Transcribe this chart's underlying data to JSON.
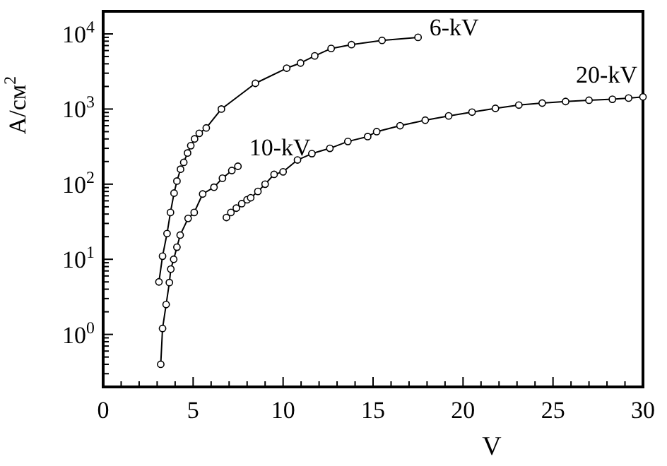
{
  "chart_data": {
    "type": "line",
    "xlabel": "V",
    "ylabel": "A/см$^{2}$",
    "log": "y",
    "marker": "circle",
    "grid": false,
    "xlim": [
      0,
      30
    ],
    "ylim": [
      0.2,
      20000
    ],
    "xticks": [
      0,
      {
        "value": 1,
        "label": null
      },
      {
        "value": 2,
        "label": null
      },
      {
        "value": 3,
        "label": null
      },
      {
        "value": 4,
        "label": null
      },
      5,
      {
        "value": 6,
        "label": null
      },
      {
        "value": 7,
        "label": null
      },
      {
        "value": 8,
        "label": null
      },
      {
        "value": 9,
        "label": null
      },
      10,
      {
        "value": 11,
        "label": null
      },
      {
        "value": 12,
        "label": null
      },
      {
        "value": 13,
        "label": null
      },
      {
        "value": 14,
        "label": null
      },
      15,
      {
        "value": 16,
        "label": null
      },
      {
        "value": 17,
        "label": null
      },
      {
        "value": 18,
        "label": null
      },
      {
        "value": 19,
        "label": null
      },
      20,
      {
        "value": 21,
        "label": null
      },
      {
        "value": 22,
        "label": null
      },
      {
        "value": 23,
        "label": null
      },
      {
        "value": 24,
        "label": null
      },
      25,
      {
        "value": 26,
        "label": null
      },
      {
        "value": 27,
        "label": null
      },
      {
        "value": 28,
        "label": null
      },
      {
        "value": 29,
        "label": null
      },
      30
    ],
    "yticks": [
      {
        "value": 0.2,
        "label": null
      },
      {
        "value": 0.3,
        "label": null
      },
      {
        "value": 0.4,
        "label": null
      },
      {
        "value": 0.5,
        "label": null
      },
      {
        "value": 0.6,
        "label": null
      },
      {
        "value": 0.7,
        "label": null
      },
      {
        "value": 0.8,
        "label": null
      },
      {
        "value": 0.9,
        "label": null
      },
      {
        "value": 1,
        "label": "10$^{0}$"
      },
      {
        "value": 2,
        "label": null
      },
      {
        "value": 3,
        "label": null
      },
      {
        "value": 4,
        "label": null
      },
      {
        "value": 5,
        "label": null
      },
      {
        "value": 6,
        "label": null
      },
      {
        "value": 7,
        "label": null
      },
      {
        "value": 8,
        "label": null
      },
      {
        "value": 9,
        "label": null
      },
      {
        "value": 10,
        "label": "10$^{1}$"
      },
      {
        "value": 20,
        "label": null
      },
      {
        "value": 30,
        "label": null
      },
      {
        "value": 40,
        "label": null
      },
      {
        "value": 50,
        "label": null
      },
      {
        "value": 60,
        "label": null
      },
      {
        "value": 70,
        "label": null
      },
      {
        "value": 80,
        "label": null
      },
      {
        "value": 90,
        "label": null
      },
      {
        "value": 100,
        "label": "10$^{2}$"
      },
      {
        "value": 200,
        "label": null
      },
      {
        "value": 300,
        "label": null
      },
      {
        "value": 400,
        "label": null
      },
      {
        "value": 500,
        "label": null
      },
      {
        "value": 600,
        "label": null
      },
      {
        "value": 700,
        "label": null
      },
      {
        "value": 800,
        "label": null
      },
      {
        "value": 900,
        "label": null
      },
      {
        "value": 1000,
        "label": "10$^{3}$"
      },
      {
        "value": 2000,
        "label": null
      },
      {
        "value": 3000,
        "label": null
      },
      {
        "value": 4000,
        "label": null
      },
      {
        "value": 5000,
        "label": null
      },
      {
        "value": 6000,
        "label": null
      },
      {
        "value": 7000,
        "label": null
      },
      {
        "value": 8000,
        "label": null
      },
      {
        "value": 9000,
        "label": null
      },
      {
        "value": 10000,
        "label": "10$^{4}$"
      },
      {
        "value": 20000,
        "label": null
      }
    ],
    "series": [
      {
        "name": "6-kV",
        "color": "#000000",
        "x": [
          3.1,
          3.3,
          3.55,
          3.74,
          3.94,
          4.1,
          4.3,
          4.48,
          4.69,
          4.87,
          5.08,
          5.34,
          5.73,
          6.57,
          8.46,
          10.2,
          10.97,
          11.76,
          12.67,
          13.8,
          15.5,
          17.5
        ],
        "values": [
          5,
          11,
          22,
          42,
          76,
          110,
          158,
          195,
          260,
          325,
          400,
          475,
          560,
          1000,
          2200,
          3500,
          4100,
          5100,
          6400,
          7200,
          8200,
          9000
        ]
      },
      {
        "name": "10-kV",
        "color": "#000000",
        "x": [
          3.2,
          3.3,
          3.5,
          3.68,
          3.76,
          3.92,
          4.1,
          4.28,
          4.72,
          5.06,
          5.53,
          6.16,
          6.63,
          7.15,
          7.49
        ],
        "values": [
          0.4,
          1.2,
          2.5,
          4.9,
          7.4,
          10,
          14.5,
          21,
          35,
          42,
          74,
          91,
          120,
          152,
          173
        ]
      },
      {
        "name": "20-kV",
        "color": "#000000",
        "x": [
          6.85,
          7.1,
          7.4,
          7.7,
          8.0,
          8.2,
          8.6,
          9.0,
          9.5,
          10.0,
          10.8,
          11.6,
          12.6,
          13.6,
          14.7,
          15.2,
          16.5,
          17.9,
          19.2,
          20.5,
          21.8,
          23.1,
          24.4,
          25.7,
          27.0,
          28.3,
          29.2,
          30
        ],
        "values": [
          36,
          42,
          48,
          55,
          62,
          66,
          80,
          100,
          135,
          146,
          210,
          255,
          300,
          370,
          430,
          500,
          600,
          710,
          810,
          910,
          1020,
          1130,
          1200,
          1260,
          1310,
          1350,
          1400,
          1450
        ]
      }
    ]
  }
}
